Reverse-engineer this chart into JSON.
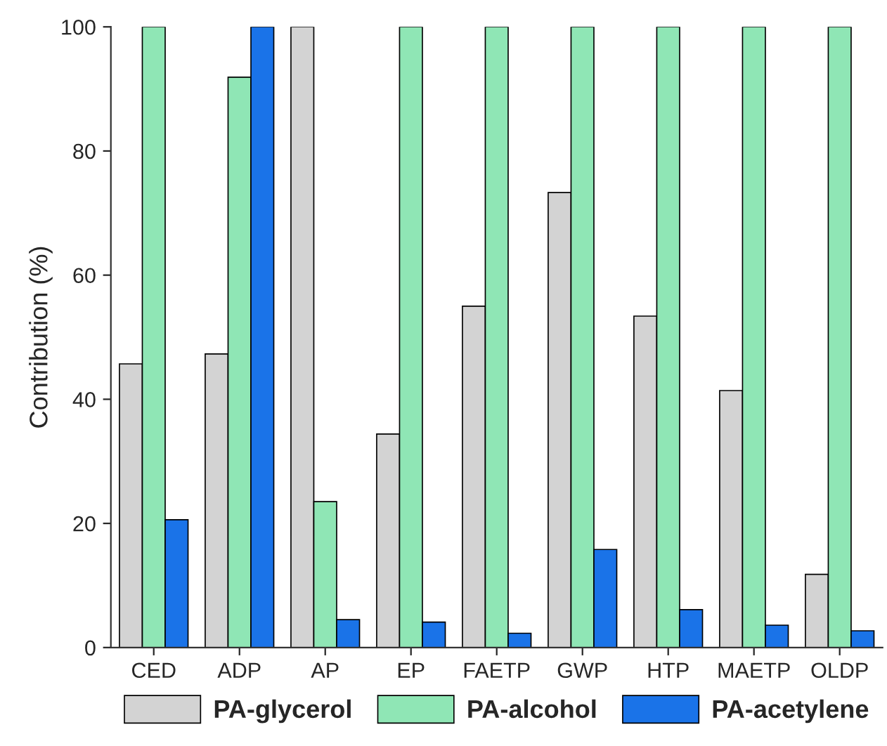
{
  "chart_data": {
    "type": "bar",
    "ylabel": "Contribution (%)",
    "categories": [
      "CED",
      "ADP",
      "AP",
      "EP",
      "FAETP",
      "GWP",
      "HTP",
      "MAETP",
      "OLDP"
    ],
    "series": [
      {
        "name": "PA-glycerol",
        "color": "#d3d3d3",
        "values": [
          45.7,
          47.3,
          100,
          34.4,
          55,
          73.3,
          53.4,
          41.4,
          11.8
        ]
      },
      {
        "name": "PA-alcohol",
        "color": "#8fe6b5",
        "values": [
          100,
          91.9,
          23.5,
          100,
          100,
          100,
          100,
          100,
          100
        ]
      },
      {
        "name": "PA-acetylene",
        "color": "#1a73e8",
        "values": [
          20.6,
          100,
          4.5,
          4.1,
          2.3,
          15.8,
          6.1,
          3.6,
          2.7
        ]
      }
    ],
    "ylim": [
      0,
      100
    ],
    "yticks": [
      0,
      20,
      40,
      60,
      80,
      100
    ],
    "grid": false,
    "legend": "bottom"
  }
}
